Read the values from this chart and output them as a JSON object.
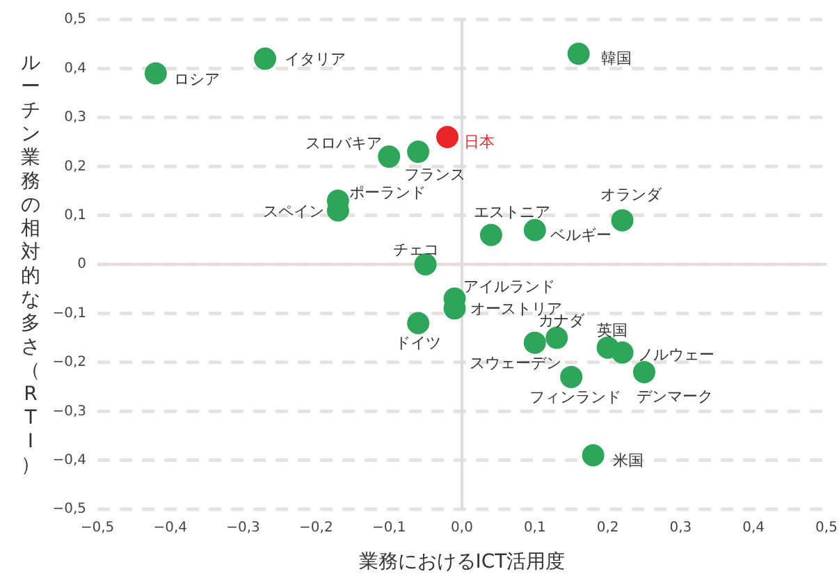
{
  "chart_data": {
    "type": "scatter",
    "xlabel": "業務におけるICT活用度",
    "ylabel": "ルーチン業務の相対的な多さ（RTI）",
    "xlim": [
      -0.5,
      0.5
    ],
    "ylim": [
      -0.5,
      0.5
    ],
    "xticks": [
      {
        "value": -0.5,
        "label": "−0,5"
      },
      {
        "value": -0.4,
        "label": "−0,4"
      },
      {
        "value": -0.3,
        "label": "−0,3"
      },
      {
        "value": -0.2,
        "label": "−0,2"
      },
      {
        "value": -0.1,
        "label": "−0,1"
      },
      {
        "value": 0,
        "label": "0,0"
      },
      {
        "value": 0.1,
        "label": "0,1"
      },
      {
        "value": 0.2,
        "label": "0,2"
      },
      {
        "value": 0.3,
        "label": "0,3"
      },
      {
        "value": 0.4,
        "label": "0,4"
      },
      {
        "value": 0.5,
        "label": "0,5"
      }
    ],
    "yticks": [
      {
        "value": -0.5,
        "label": "−0,5"
      },
      {
        "value": -0.4,
        "label": "−0,4"
      },
      {
        "value": -0.3,
        "label": "−0,3"
      },
      {
        "value": -0.2,
        "label": "−0,2"
      },
      {
        "value": -0.1,
        "label": "−0,1"
      },
      0,
      {
        "value": 0.1,
        "label": "0,1"
      },
      {
        "value": 0.2,
        "label": "0,2"
      },
      {
        "value": 0.3,
        "label": "0,3"
      },
      {
        "value": 0.4,
        "label": "0,4"
      },
      {
        "value": 0.5,
        "label": "0,5"
      }
    ],
    "grid": "y",
    "marker": "circle",
    "ref_lines": [
      {
        "axis": "x",
        "value": 0,
        "color": "#dcdcdc"
      },
      {
        "axis": "y",
        "value": 0,
        "color": "#e6dcdc"
      }
    ],
    "series": [
      {
        "name": "ロシア",
        "color": "#2ea55a",
        "x": [
          -0.42
        ],
        "values": [
          0.39
        ]
      },
      {
        "name": "イタリア",
        "color": "#2ea55a",
        "x": [
          -0.27
        ],
        "values": [
          0.42
        ]
      },
      {
        "name": "スロバキア",
        "color": "#2ea55a",
        "x": [
          -0.1
        ],
        "values": [
          0.22
        ]
      },
      {
        "name": "フランス",
        "color": "#2ea55a",
        "x": [
          -0.06
        ],
        "values": [
          0.23
        ]
      },
      {
        "name": "日本",
        "color": "#e8262a",
        "x": [
          -0.02
        ],
        "values": [
          0.26
        ]
      },
      {
        "name": "ポーランド",
        "color": "#2ea55a",
        "x": [
          -0.17
        ],
        "values": [
          0.13
        ]
      },
      {
        "name": "スペイン",
        "color": "#2ea55a",
        "x": [
          -0.17
        ],
        "values": [
          0.11
        ]
      },
      {
        "name": "チェコ",
        "color": "#2ea55a",
        "x": [
          -0.05
        ],
        "values": [
          0
        ]
      },
      {
        "name": "韓国",
        "color": "#2ea55a",
        "x": [
          0.16
        ],
        "values": [
          0.43
        ]
      },
      {
        "name": "エストニア",
        "color": "#2ea55a",
        "x": [
          0.04
        ],
        "values": [
          0.06
        ]
      },
      {
        "name": "ベルギー",
        "color": "#2ea55a",
        "x": [
          0.1
        ],
        "values": [
          0.07
        ]
      },
      {
        "name": "オランダ",
        "color": "#2ea55a",
        "x": [
          0.22
        ],
        "values": [
          0.09
        ]
      },
      {
        "name": "アイルランド",
        "color": "#2ea55a",
        "x": [
          -0.01
        ],
        "values": [
          -0.07
        ]
      },
      {
        "name": "オーストリア",
        "color": "#2ea55a",
        "x": [
          -0.01
        ],
        "values": [
          -0.09
        ]
      },
      {
        "name": "ドイツ",
        "color": "#2ea55a",
        "x": [
          -0.06
        ],
        "values": [
          -0.12
        ]
      },
      {
        "name": "スウェーデン",
        "color": "#2ea55a",
        "x": [
          0.1
        ],
        "values": [
          -0.16
        ]
      },
      {
        "name": "カナダ",
        "color": "#2ea55a",
        "x": [
          0.13
        ],
        "values": [
          -0.15
        ]
      },
      {
        "name": "英国",
        "color": "#2ea55a",
        "x": [
          0.2
        ],
        "values": [
          -0.17
        ]
      },
      {
        "name": "ノルウェー",
        "color": "#2ea55a",
        "x": [
          0.22
        ],
        "values": [
          -0.18
        ]
      },
      {
        "name": "デンマーク",
        "color": "#2ea55a",
        "x": [
          0.25
        ],
        "values": [
          -0.22
        ]
      },
      {
        "name": "フィンランド",
        "color": "#2ea55a",
        "x": [
          0.15
        ],
        "values": [
          -0.23
        ]
      },
      {
        "name": "米国",
        "color": "#2ea55a",
        "x": [
          0.18
        ],
        "values": [
          -0.39
        ]
      }
    ]
  }
}
